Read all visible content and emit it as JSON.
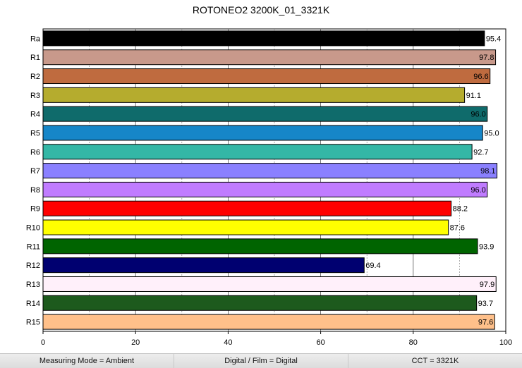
{
  "chart_data": {
    "type": "bar",
    "orientation": "horizontal",
    "title": "ROTONEO2 3200K_01_3321K",
    "categories": [
      "Ra",
      "R1",
      "R2",
      "R3",
      "R4",
      "R5",
      "R6",
      "R7",
      "R8",
      "R9",
      "R10",
      "R11",
      "R12",
      "R13",
      "R14",
      "R15"
    ],
    "values": [
      95.4,
      97.8,
      96.6,
      91.1,
      96.0,
      95.0,
      92.7,
      98.1,
      96.0,
      88.2,
      87.6,
      93.9,
      69.4,
      97.9,
      93.7,
      97.6
    ],
    "value_labels": [
      "95.4",
      "97.8",
      "96.6",
      "91.1",
      "96.0",
      "95.0",
      "92.7",
      "98.1",
      "96.0",
      "88.2",
      "87.6",
      "93.9",
      "69.4",
      "97.9",
      "93.7",
      "97.6"
    ],
    "colors": [
      "#000000",
      "#c8998b",
      "#bf6b3f",
      "#b5ac2e",
      "#0f6b6b",
      "#1686c8",
      "#34b7a6",
      "#8a80ff",
      "#c07cff",
      "#ff0000",
      "#ffff00",
      "#006400",
      "#000070",
      "#fff0fa",
      "#1d5a1d",
      "#ffc08a"
    ],
    "xlim": [
      0,
      100
    ],
    "x_ticks": [
      "0",
      "20",
      "40",
      "60",
      "80",
      "100"
    ],
    "grid": "vertical",
    "xlabel": "",
    "ylabel": ""
  },
  "status": {
    "measuring_mode": "Measuring Mode = Ambient",
    "digital_film": "Digital / Film = Digital",
    "cct": "CCT = 3321K"
  }
}
